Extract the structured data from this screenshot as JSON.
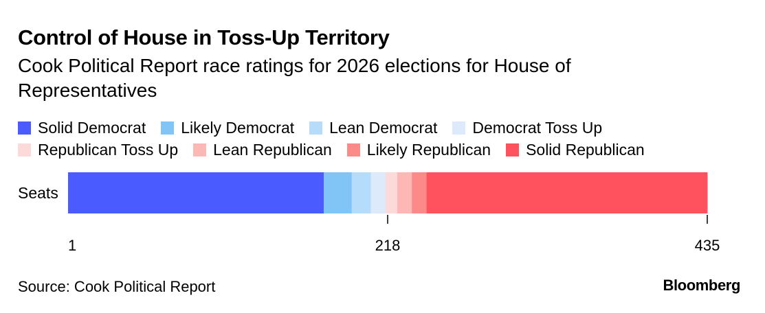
{
  "title": "Control of House in Toss-Up Territory",
  "subtitle": "Cook Political Report race ratings for 2026 elections for House of Representatives",
  "source": "Source: Cook Political Report",
  "logo": "Bloomberg",
  "chart_data": {
    "type": "bar",
    "orientation": "horizontal-stacked",
    "categories": [
      "Seats"
    ],
    "series": [
      {
        "name": "Solid Democrat",
        "values": [
          174
        ],
        "color": "#4a5cff"
      },
      {
        "name": "Likely Democrat",
        "values": [
          19
        ],
        "color": "#81c5f7"
      },
      {
        "name": "Lean Democrat",
        "values": [
          13
        ],
        "color": "#b6dcfb"
      },
      {
        "name": "Democrat Toss Up",
        "values": [
          10
        ],
        "color": "#dceafb"
      },
      {
        "name": "Republican Toss Up",
        "values": [
          8
        ],
        "color": "#fcdada"
      },
      {
        "name": "Lean Republican",
        "values": [
          10
        ],
        "color": "#fbb8b5"
      },
      {
        "name": "Likely Republican",
        "values": [
          10
        ],
        "color": "#fb8a88"
      },
      {
        "name": "Solid Republican",
        "values": [
          191
        ],
        "color": "#ff515e"
      }
    ],
    "xticks": [
      {
        "value": 1,
        "label": "1"
      },
      {
        "value": 218,
        "label": "218"
      },
      {
        "value": 435,
        "label": "435"
      }
    ],
    "xlim": [
      1,
      435
    ],
    "grid": false,
    "legend": "top"
  }
}
